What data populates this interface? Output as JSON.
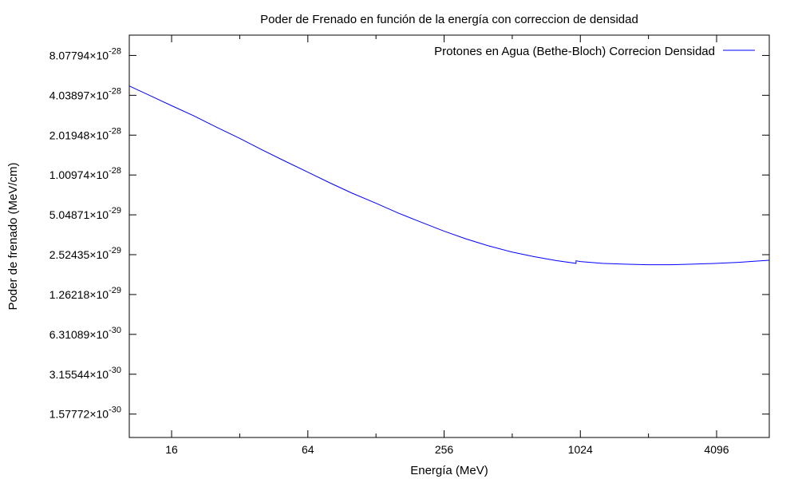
{
  "chart_data": {
    "type": "line",
    "title": "Poder de Frenado en función de la energía con correccion de densidad",
    "xlabel": "Energía (MeV)",
    "ylabel": "Poder de frenado (MeV/cm)",
    "x_scale": "log2",
    "y_scale": "log2",
    "xlim": [
      10.4,
      7000
    ],
    "ylim": [
      1.05e-30,
      1.15e-27
    ],
    "grid": false,
    "legend_position": "top-right",
    "x_ticks": [
      {
        "value": 16,
        "label": "16"
      },
      {
        "value": 64,
        "label": "64"
      },
      {
        "value": 256,
        "label": "256"
      },
      {
        "value": 1024,
        "label": "1024"
      },
      {
        "value": 4096,
        "label": "4096"
      }
    ],
    "y_ticks": [
      {
        "value": 8.07794e-28,
        "mantissa": "8.07794",
        "exponent": "-28"
      },
      {
        "value": 4.03897e-28,
        "mantissa": "4.03897",
        "exponent": "-28"
      },
      {
        "value": 2.01948e-28,
        "mantissa": "2.01948",
        "exponent": "-28"
      },
      {
        "value": 1.00974e-28,
        "mantissa": "1.00974",
        "exponent": "-28"
      },
      {
        "value": 5.04871e-29,
        "mantissa": "5.04871",
        "exponent": "-29"
      },
      {
        "value": 2.52435e-29,
        "mantissa": "2.52435",
        "exponent": "-29"
      },
      {
        "value": 1.26218e-29,
        "mantissa": "1.26218",
        "exponent": "-29"
      },
      {
        "value": 6.31089e-30,
        "mantissa": "6.31089",
        "exponent": "-30"
      },
      {
        "value": 3.15544e-30,
        "mantissa": "3.15544",
        "exponent": "-30"
      },
      {
        "value": 1.57772e-30,
        "mantissa": "1.57772",
        "exponent": "-30"
      }
    ],
    "series": [
      {
        "name": "Protones en Agua (Bethe-Bloch) Correcion Densidad",
        "color": "#0000ff",
        "points": [
          [
            10.4,
            4.75e-28
          ],
          [
            13,
            3.98e-28
          ],
          [
            16,
            3.37e-28
          ],
          [
            20,
            2.83e-28
          ],
          [
            25,
            2.34e-28
          ],
          [
            32,
            1.91e-28
          ],
          [
            40,
            1.57e-28
          ],
          [
            50,
            1.3e-28
          ],
          [
            64,
            1.06e-28
          ],
          [
            80,
            8.81e-29
          ],
          [
            100,
            7.38e-29
          ],
          [
            128,
            6.18e-29
          ],
          [
            160,
            5.22e-29
          ],
          [
            200,
            4.48e-29
          ],
          [
            256,
            3.8e-29
          ],
          [
            320,
            3.32e-29
          ],
          [
            400,
            2.95e-29
          ],
          [
            512,
            2.64e-29
          ],
          [
            640,
            2.44e-29
          ],
          [
            800,
            2.28e-29
          ],
          [
            980,
            2.17e-29
          ],
          [
            980,
            2.27e-29
          ],
          [
            1024,
            2.24e-29
          ],
          [
            1280,
            2.17e-29
          ],
          [
            1600,
            2.14e-29
          ],
          [
            2048,
            2.12e-29
          ],
          [
            2560,
            2.12e-29
          ],
          [
            3200,
            2.14e-29
          ],
          [
            4096,
            2.17e-29
          ],
          [
            5120,
            2.21e-29
          ],
          [
            6000,
            2.25e-29
          ],
          [
            7000,
            2.29e-29
          ]
        ]
      }
    ]
  }
}
